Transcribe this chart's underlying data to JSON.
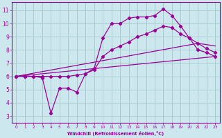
{
  "xlabel": "Windchill (Refroidissement éolien,°C)",
  "bg_color": "#cce8ee",
  "line_color": "#990099",
  "grid_color": "#aacccc",
  "xlim": [
    -0.5,
    23.5
  ],
  "ylim": [
    2.5,
    11.6
  ],
  "xticks": [
    0,
    1,
    2,
    3,
    4,
    5,
    6,
    7,
    8,
    9,
    10,
    11,
    12,
    13,
    14,
    15,
    16,
    17,
    18,
    19,
    20,
    21,
    22,
    23
  ],
  "yticks": [
    3,
    4,
    5,
    6,
    7,
    8,
    9,
    10,
    11
  ],
  "line1_x": [
    0,
    1,
    2,
    3,
    4,
    5,
    6,
    7,
    8,
    9,
    10,
    11,
    12,
    13,
    14,
    15,
    16,
    17,
    18,
    19,
    20,
    21,
    22,
    23
  ],
  "line1_y": [
    6.0,
    6.0,
    6.0,
    5.9,
    3.2,
    5.1,
    5.1,
    4.8,
    6.2,
    6.6,
    8.9,
    10.0,
    10.0,
    10.4,
    10.5,
    10.5,
    10.6,
    11.1,
    10.6,
    9.8,
    8.9,
    8.0,
    7.8,
    7.5
  ],
  "line2_x": [
    0,
    1,
    2,
    3,
    4,
    5,
    6,
    7,
    8,
    9,
    10,
    11,
    12,
    13,
    14,
    15,
    16,
    17,
    18,
    19,
    20,
    21,
    22,
    23
  ],
  "line2_y": [
    6.0,
    6.0,
    6.0,
    6.0,
    6.0,
    6.0,
    6.0,
    6.1,
    6.2,
    6.5,
    7.5,
    8.0,
    8.3,
    8.6,
    9.0,
    9.2,
    9.5,
    9.8,
    9.7,
    9.2,
    8.9,
    8.5,
    8.1,
    7.8
  ],
  "line3_x": [
    0,
    23
  ],
  "line3_y": [
    6.0,
    7.5
  ],
  "line4_x": [
    0,
    21,
    23
  ],
  "line4_y": [
    6.0,
    8.5,
    8.3
  ]
}
